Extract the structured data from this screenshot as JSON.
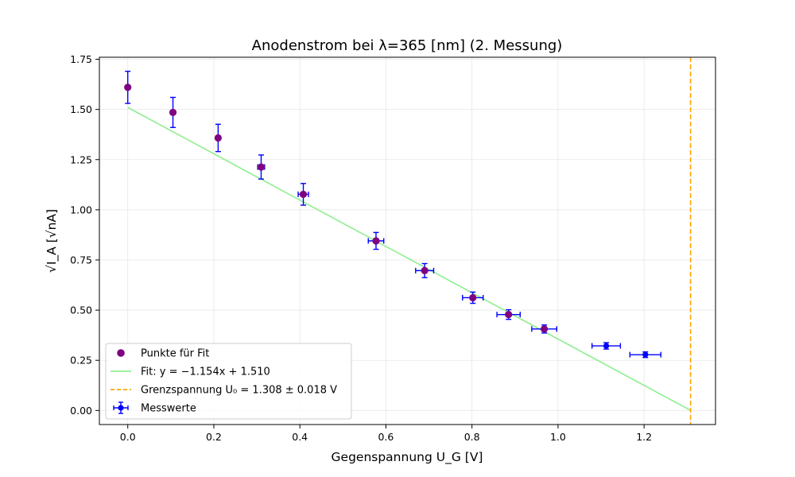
{
  "chart_data": {
    "type": "scatter",
    "title": "Anodenstrom bei λ=365 [nm] (2. Messung)",
    "xlabel": "Gegenspannung U_G [V]",
    "ylabel": "√I_A [√nA]",
    "xlim": [
      -0.066,
      1.366
    ],
    "ylim": [
      -0.07,
      1.76
    ],
    "xticks": [
      0.0,
      0.2,
      0.4,
      0.6,
      0.8,
      1.0,
      1.2
    ],
    "xtick_labels": [
      "0.0",
      "0.2",
      "0.4",
      "0.6",
      "0.8",
      "1.0",
      "1.2"
    ],
    "yticks": [
      0.0,
      0.25,
      0.5,
      0.75,
      1.0,
      1.25,
      1.5,
      1.75
    ],
    "ytick_labels": [
      "0.00",
      "0.25",
      "0.50",
      "0.75",
      "1.00",
      "1.25",
      "1.50",
      "1.75"
    ],
    "grid": true,
    "legend_position": "lower-left",
    "series": [
      {
        "name": "Messwerte",
        "kind": "errorbar",
        "color": "#0000ff",
        "points": [
          {
            "x": 0.0,
            "y": 1.61,
            "xerr": 0.0,
            "yerr": 0.08
          },
          {
            "x": 0.105,
            "y": 1.485,
            "xerr": 0.0,
            "yerr": 0.075
          },
          {
            "x": 0.21,
            "y": 1.358,
            "xerr": 0.0,
            "yerr": 0.068
          },
          {
            "x": 0.31,
            "y": 1.213,
            "xerr": 0.008,
            "yerr": 0.06
          },
          {
            "x": 0.408,
            "y": 1.077,
            "xerr": 0.012,
            "yerr": 0.054
          },
          {
            "x": 0.577,
            "y": 0.845,
            "xerr": 0.018,
            "yerr": 0.042
          },
          {
            "x": 0.69,
            "y": 0.697,
            "xerr": 0.021,
            "yerr": 0.035
          },
          {
            "x": 0.802,
            "y": 0.562,
            "xerr": 0.024,
            "yerr": 0.028
          },
          {
            "x": 0.885,
            "y": 0.478,
            "xerr": 0.027,
            "yerr": 0.024
          },
          {
            "x": 0.968,
            "y": 0.406,
            "xerr": 0.029,
            "yerr": 0.02
          },
          {
            "x": 1.112,
            "y": 0.322,
            "xerr": 0.033,
            "yerr": 0.016
          },
          {
            "x": 1.203,
            "y": 0.278,
            "xerr": 0.036,
            "yerr": 0.014
          }
        ]
      },
      {
        "name": "Punkte für Fit",
        "kind": "scatter",
        "color": "#800080",
        "points": [
          {
            "x": 0.0,
            "y": 1.61
          },
          {
            "x": 0.105,
            "y": 1.485
          },
          {
            "x": 0.21,
            "y": 1.358
          },
          {
            "x": 0.31,
            "y": 1.213
          },
          {
            "x": 0.408,
            "y": 1.077
          },
          {
            "x": 0.577,
            "y": 0.845
          },
          {
            "x": 0.69,
            "y": 0.697
          },
          {
            "x": 0.802,
            "y": 0.562
          },
          {
            "x": 0.885,
            "y": 0.478
          },
          {
            "x": 0.968,
            "y": 0.406
          }
        ]
      },
      {
        "name": "Fit: y = −1.154x + 1.510",
        "kind": "line",
        "color": "#90ee90",
        "slope": -1.154,
        "intercept": 1.51,
        "x_range": [
          0.0,
          1.308
        ]
      },
      {
        "name": "Grenzspannung U₀ = 1.308 ± 0.018 V",
        "kind": "vline",
        "color": "#ffa500",
        "x": 1.308
      }
    ],
    "legend": [
      {
        "label": "Punkte für Fit",
        "kind": "scatter",
        "color": "#800080"
      },
      {
        "label": "Fit: y = −1.154x + 1.510",
        "kind": "line",
        "color": "#90ee90"
      },
      {
        "label": "Grenzspannung U₀ = 1.308 ± 0.018 V",
        "kind": "vline",
        "color": "#ffa500"
      },
      {
        "label": "Messwerte",
        "kind": "errorbar",
        "color": "#0000ff"
      }
    ]
  }
}
